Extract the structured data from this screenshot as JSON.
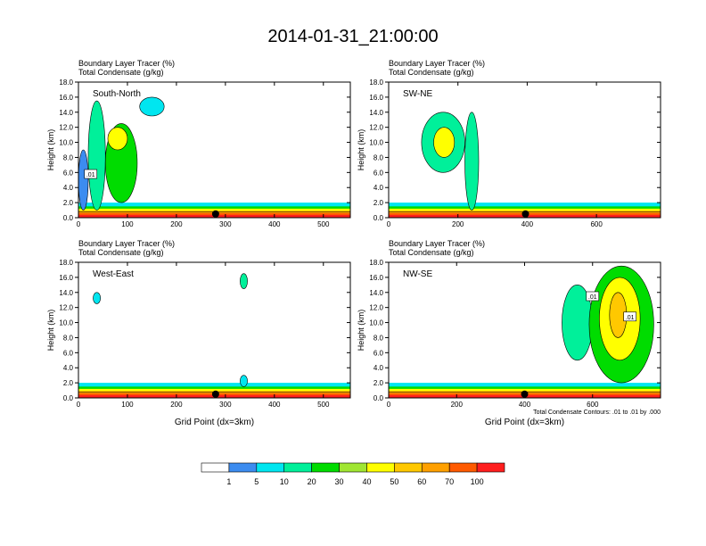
{
  "title": "2014-01-31_21:00:00",
  "panel_header": {
    "line1": "Boundary Layer Tracer   (%)",
    "line2": "Total Condensate   (g/kg)"
  },
  "footnote": "Total Condensate Contours: .01 to .01 by .000",
  "colorbar": {
    "levels": [
      "1",
      "5",
      "10",
      "20",
      "30",
      "40",
      "50",
      "60",
      "70",
      "100"
    ],
    "colors": [
      "#ffffff",
      "#3c8cf0",
      "#00e6f0",
      "#00f09a",
      "#00dc00",
      "#a0e632",
      "#ffff00",
      "#ffc800",
      "#ffa000",
      "#ff5a00",
      "#ff1e1e"
    ]
  },
  "chart_data": [
    {
      "type": "heatmap",
      "panel": "South-North",
      "ylabel": "Height (km)",
      "xlabel": "",
      "ylim": [
        0,
        18
      ],
      "yticks": [
        "0.0",
        "2.0",
        "4.0",
        "6.0",
        "8.0",
        "10.0",
        "12.0",
        "14.0",
        "16.0",
        "18.0"
      ],
      "xlim": [
        0,
        555
      ],
      "xticks": [
        0,
        100,
        200,
        300,
        400,
        500
      ],
      "marker_x": 280,
      "contour_labels": [
        {
          "text": ".01",
          "x": 25,
          "y": 5.8
        }
      ],
      "blobs": [
        {
          "x0": 0,
          "x1": 20,
          "y0": 1,
          "y1": 9,
          "level": 1
        },
        {
          "x0": 20,
          "x1": 55,
          "y0": 1,
          "y1": 15.5,
          "level": 3
        },
        {
          "x0": 55,
          "x1": 120,
          "y0": 2,
          "y1": 12.5,
          "level": 4
        },
        {
          "x0": 125,
          "x1": 175,
          "y0": 13.5,
          "y1": 16,
          "level": 2
        },
        {
          "x0": 60,
          "x1": 100,
          "y0": 9,
          "y1": 12,
          "level": 6
        }
      ]
    },
    {
      "type": "heatmap",
      "panel": "SW-NE",
      "ylabel": "Height (km)",
      "xlabel": "",
      "ylim": [
        0,
        18
      ],
      "yticks": [
        "0.0",
        "2.0",
        "4.0",
        "6.0",
        "8.0",
        "10.0",
        "12.0",
        "14.0",
        "16.0",
        "18.0"
      ],
      "xlim": [
        0,
        785
      ],
      "xticks": [
        0,
        200,
        400,
        600
      ],
      "marker_x": 395,
      "contour_labels": [],
      "blobs": [
        {
          "x0": 95,
          "x1": 220,
          "y0": 6,
          "y1": 14,
          "level": 3
        },
        {
          "x0": 130,
          "x1": 190,
          "y0": 8,
          "y1": 12,
          "level": 6
        },
        {
          "x0": 220,
          "x1": 260,
          "y0": 1,
          "y1": 14,
          "level": 3
        }
      ]
    },
    {
      "type": "heatmap",
      "panel": "West-East",
      "ylabel": "Height (km)",
      "xlabel": "Grid Point (dx=3km)",
      "ylim": [
        0,
        18
      ],
      "yticks": [
        "0.0",
        "2.0",
        "4.0",
        "6.0",
        "8.0",
        "10.0",
        "12.0",
        "14.0",
        "16.0",
        "18.0"
      ],
      "xlim": [
        0,
        555
      ],
      "xticks": [
        0,
        100,
        200,
        300,
        400,
        500
      ],
      "marker_x": 280,
      "contour_labels": [],
      "blobs": [
        {
          "x0": 30,
          "x1": 45,
          "y0": 12.5,
          "y1": 14,
          "level": 2
        },
        {
          "x0": 330,
          "x1": 345,
          "y0": 14.5,
          "y1": 16.5,
          "level": 3
        },
        {
          "x0": 330,
          "x1": 345,
          "y0": 1.5,
          "y1": 3,
          "level": 2
        }
      ]
    },
    {
      "type": "heatmap",
      "panel": "NW-SE",
      "ylabel": "Height (km)",
      "xlabel": "Grid Point (dx=3km)",
      "ylim": [
        0,
        18
      ],
      "yticks": [
        "0.0",
        "2.0",
        "4.0",
        "6.0",
        "8.0",
        "10.0",
        "12.0",
        "14.0",
        "16.0",
        "18.0"
      ],
      "xlim": [
        0,
        800
      ],
      "xticks": [
        0,
        200,
        400,
        600
      ],
      "marker_x": 400,
      "contour_labels": [
        {
          "text": ".01",
          "x": 600,
          "y": 13.5
        },
        {
          "text": ".01",
          "x": 710,
          "y": 10.8
        }
      ],
      "blobs": [
        {
          "x0": 510,
          "x1": 600,
          "y0": 5,
          "y1": 15,
          "level": 3
        },
        {
          "x0": 590,
          "x1": 780,
          "y0": 2,
          "y1": 17.5,
          "level": 4
        },
        {
          "x0": 620,
          "x1": 740,
          "y0": 5,
          "y1": 16,
          "level": 6
        },
        {
          "x0": 650,
          "x1": 700,
          "y0": 8,
          "y1": 14,
          "level": 7
        }
      ]
    }
  ]
}
